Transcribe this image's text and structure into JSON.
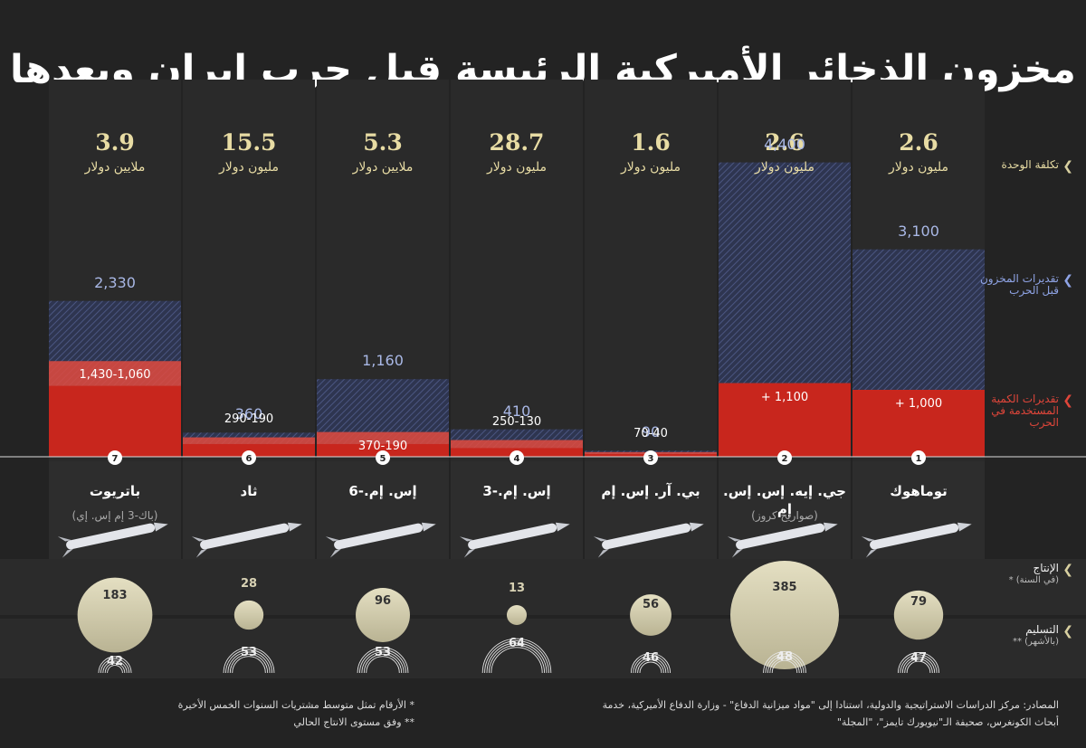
{
  "title": "مخزون الذخائر الأميركية الرئيسة قبل حرب إيران وبعدها",
  "legend": {
    "unit_cost": "تكلفة الوحدة",
    "stock_before": "تقديرات المخزون قبل الحرب",
    "used_in_war": "تقديرات الكمية المستخدمة في الحرب",
    "production": "الإنتاج",
    "production_note": "(في السنة) *",
    "delivery": "التسليم",
    "delivery_note": "(بالأشهر) **"
  },
  "colors": {
    "stock": "#a9b8e6",
    "used": "#c8261d",
    "cost": "#e8dca4",
    "bubble": "#d9d4b2"
  },
  "chart_data": {
    "type": "bar",
    "categories": [
      {
        "rank": "1",
        "name": "توماهوك",
        "sub": "",
        "cost": "2.6",
        "cost_unit": "مليون دولار",
        "stock_label": "3,100",
        "used_label": "+ 1,000",
        "production_label": "79",
        "delivery_label": "47"
      },
      {
        "rank": "2",
        "name": "جي. إيه. إس. إس. إم",
        "sub": "(صواريخ كروز)",
        "cost": "2.6",
        "cost_unit": "مليون دولار",
        "stock_label": "4,400",
        "used_label": "+ 1,100",
        "production_label": "385",
        "delivery_label": "48"
      },
      {
        "rank": "3",
        "name": "بي. آر. إس. إم",
        "sub": "",
        "cost": "1.6",
        "cost_unit": "مليون دولار",
        "stock_label": "90",
        "used_label": "70-40",
        "production_label": "56",
        "delivery_label": "46"
      },
      {
        "rank": "4",
        "name": "إس. إم.-3",
        "sub": "",
        "cost": "28.7",
        "cost_unit": "مليون دولار",
        "stock_label": "410",
        "used_label": "250-130",
        "production_label": "13",
        "delivery_label": "64"
      },
      {
        "rank": "5",
        "name": "إس. إم.-6",
        "sub": "",
        "cost": "5.3",
        "cost_unit": "ملايين دولار",
        "stock_label": "1,160",
        "used_label": "370-190",
        "production_label": "96",
        "delivery_label": "53"
      },
      {
        "rank": "6",
        "name": "ثاد",
        "sub": "",
        "cost": "15.5",
        "cost_unit": "مليون دولار",
        "stock_label": "360",
        "used_label": "290-190",
        "production_label": "28",
        "delivery_label": "53"
      },
      {
        "rank": "7",
        "name": "باتريوت",
        "sub": "(باك-3 إم إس. إي)",
        "cost": "3.9",
        "cost_unit": "ملايين دولار",
        "stock_label": "2,330",
        "used_label": "1,430-1,060",
        "production_label": "183",
        "delivery_label": "42"
      }
    ],
    "series": [
      {
        "name": "تقديرات المخزون قبل الحرب",
        "values": [
          3100,
          4400,
          90,
          410,
          1160,
          360,
          2330
        ]
      },
      {
        "name": "تقديرات الكمية المستخدمة في الحرب",
        "values_low": [
          1000,
          1100,
          40,
          130,
          190,
          190,
          1060
        ],
        "values_high": [
          1000,
          1100,
          70,
          250,
          370,
          290,
          1430
        ]
      },
      {
        "name": "الإنتاج",
        "values": [
          79,
          385,
          56,
          13,
          96,
          28,
          183
        ]
      },
      {
        "name": "التسليم",
        "values": [
          47,
          48,
          46,
          64,
          53,
          53,
          42
        ]
      }
    ],
    "ylim": [
      0,
      4800
    ]
  },
  "footer": {
    "sources_line1": "المصادر: مركز الدراسات الاستراتيجية والدولية، استنادا إلى \"مواد ميزانية الدفاع\" - وزارة الدفاع الأميركية، خدمة",
    "sources_line2": "أبحاث الكونغرس، صحيفة الـ\"نيويورك تايمز\"، \"المجلة\"",
    "note1": "* الأرقام تمثل متوسط مشتريات السنوات الخمس الأخيرة",
    "note2": "** وفق مستوى الانتاج الحالي"
  }
}
